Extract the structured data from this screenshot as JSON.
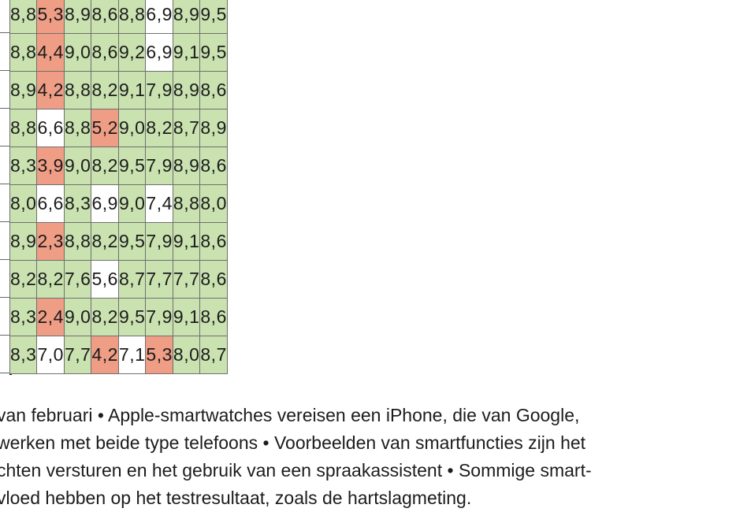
{
  "table": {
    "rows": [
      [
        "8,8",
        "5,3",
        "8,9",
        "8,6",
        "8,8",
        "6,9",
        "8,9",
        "9,5"
      ],
      [
        "8,8",
        "4,4",
        "9,0",
        "8,6",
        "9,2",
        "6,9",
        "9,1",
        "9,5"
      ],
      [
        "8,9",
        "4,2",
        "8,8",
        "8,2",
        "9,1",
        "7,9",
        "8,9",
        "8,6"
      ],
      [
        "8,8",
        "6,6",
        "8,8",
        "5,2",
        "9,0",
        "8,2",
        "8,7",
        "8,9"
      ],
      [
        "8,3",
        "3,9",
        "9,0",
        "8,2",
        "9,5",
        "7,9",
        "8,9",
        "8,6"
      ],
      [
        "8,0",
        "6,6",
        "8,3",
        "6,9",
        "9,0",
        "7,4",
        "8,8",
        "8,0"
      ],
      [
        "8,9",
        "2,3",
        "8,8",
        "8,2",
        "9,5",
        "7,9",
        "9,1",
        "8,6"
      ],
      [
        "8,2",
        "8,2",
        "7,6",
        "5,6",
        "8,7",
        "7,7",
        "7,7",
        "8,6"
      ],
      [
        "8,3",
        "2,4",
        "9,0",
        "8,2",
        "9,5",
        "7,9",
        "9,1",
        "8,6"
      ],
      [
        "8,3",
        "7,0",
        "7,7",
        "4,2",
        "7,1",
        "5,3",
        "8,0",
        "8,7"
      ]
    ],
    "cell_colors": [
      [
        "green",
        "red",
        "green",
        "green",
        "green",
        "white",
        "green",
        "green"
      ],
      [
        "green",
        "red",
        "green",
        "green",
        "green",
        "white",
        "green",
        "green"
      ],
      [
        "green",
        "red",
        "green",
        "green",
        "green",
        "green",
        "green",
        "green"
      ],
      [
        "green",
        "white",
        "green",
        "red",
        "green",
        "green",
        "green",
        "green"
      ],
      [
        "green",
        "red",
        "green",
        "green",
        "green",
        "green",
        "green",
        "green"
      ],
      [
        "green",
        "white",
        "green",
        "white",
        "green",
        "white",
        "green",
        "green"
      ],
      [
        "green",
        "red",
        "green",
        "green",
        "green",
        "green",
        "green",
        "green"
      ],
      [
        "green",
        "green",
        "green",
        "white",
        "green",
        "green",
        "green",
        "green"
      ],
      [
        "green",
        "red",
        "green",
        "green",
        "green",
        "green",
        "green",
        "green"
      ],
      [
        "green",
        "white",
        "green",
        "red",
        "white",
        "red",
        "green",
        "green"
      ]
    ],
    "palette": {
      "green": "#c9e2b0",
      "red": "#ef9d85",
      "white": "#ffffff"
    }
  },
  "footnote": {
    "lines": [
      "van februari • Apple-smartwatches vereisen een iPhone, die van Google,",
      "werken met beide type telefoons • Voorbeelden van smartfuncties zijn het",
      "chten versturen en het gebruik van een spraakassistent • Sommige smart-",
      "vloed hebben op het testresultaat, zoals de hartslagmeting."
    ]
  }
}
